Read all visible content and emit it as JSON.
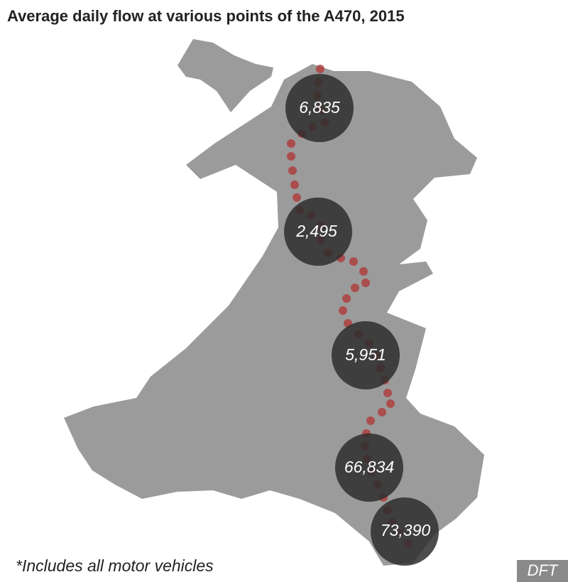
{
  "title": "Average daily flow at various points of the A470, 2015",
  "flows": [
    "6,835",
    "2,495",
    "5,951",
    "66,834",
    "73,390"
  ],
  "footnote": "*Includes all motor vehicles",
  "source": "DFT"
}
